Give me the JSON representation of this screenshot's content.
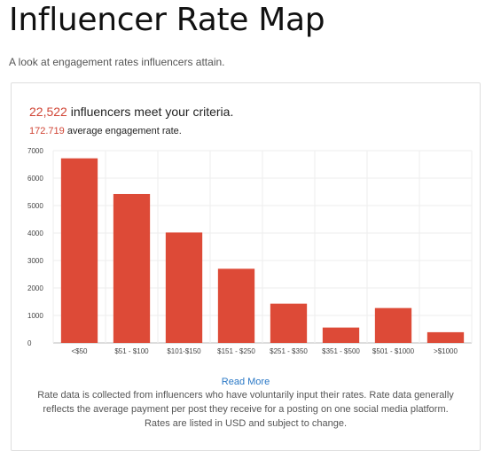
{
  "header": {
    "title": "Influencer Rate Map",
    "subtitle": "A look at engagement rates influencers attain."
  },
  "summary": {
    "count": "22,522",
    "count_text": " influencers meet your criteria.",
    "rate": "172.719",
    "rate_text": " average engagement rate."
  },
  "colors": {
    "bar": "#dd4a37",
    "accent": "#d04434",
    "link": "#2a78c6"
  },
  "chart_data": {
    "type": "bar",
    "categories": [
      "<$50",
      "$51 - $100",
      "$101-$150",
      "$151 - $250",
      "$251 - $350",
      "$351 - $500",
      "$501 - $1000",
      ">$1000"
    ],
    "values": [
      6720,
      5420,
      4020,
      2700,
      1430,
      560,
      1270,
      390
    ],
    "ylim": [
      0,
      7000
    ],
    "yticks": [
      0,
      1000,
      2000,
      3000,
      4000,
      5000,
      6000,
      7000
    ],
    "grid": true,
    "legend": "none"
  },
  "footer": {
    "read_more": "Read More",
    "note": "Rate data is collected from influencers who have voluntarily input their rates. Rate data generally reflects the average payment per post they receive for a posting on one social media platform. Rates are listed in USD and subject to change."
  }
}
